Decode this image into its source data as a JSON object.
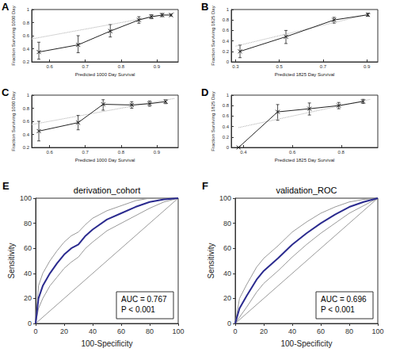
{
  "chart_data": [
    {
      "type": "calibration",
      "panel": "A",
      "x_label": "Predicted 1000 Day Survival",
      "y_label": "Fraction Surviving 1000 Day",
      "xlim": [
        0.55,
        0.96
      ],
      "xticks": [
        0.6,
        0.7,
        0.8,
        0.9
      ],
      "ylim": [
        0.2,
        1
      ],
      "yticks": [
        0.2,
        0.4,
        0.6,
        0.8,
        1
      ],
      "x": [
        0.57,
        0.68,
        0.77,
        0.85,
        0.885,
        0.915,
        0.94
      ],
      "values": [
        0.35,
        0.46,
        0.67,
        0.84,
        0.89,
        0.915,
        0.915
      ],
      "error_low": [
        0.24,
        0.34,
        0.58,
        0.79,
        0.86,
        0.89,
        0.9
      ],
      "error_high": [
        0.5,
        0.6,
        0.77,
        0.89,
        0.92,
        0.94,
        0.93
      ],
      "color": "#222222",
      "marker": "cross",
      "reference_line": {
        "x": [
          0.55,
          0.95
        ],
        "values": [
          0.55,
          0.95
        ],
        "color": "#aaaaaa",
        "line_style": "dotted"
      }
    },
    {
      "type": "calibration",
      "panel": "B",
      "x_label": "Predicted 1825 Day Survival",
      "y_label": "Fraction Surviving 1825 Day",
      "xlim": [
        0.28,
        0.95
      ],
      "xticks": [
        0.3,
        0.5,
        0.7,
        0.9
      ],
      "ylim": [
        0,
        1
      ],
      "yticks": [
        0,
        0.2,
        0.4,
        0.6,
        0.8,
        1
      ],
      "x": [
        0.32,
        0.53,
        0.75,
        0.905
      ],
      "values": [
        0.2,
        0.48,
        0.8,
        0.9
      ],
      "error_low": [
        0.08,
        0.35,
        0.74,
        0.87
      ],
      "error_high": [
        0.32,
        0.6,
        0.85,
        0.93
      ],
      "color": "#222222",
      "marker": "cross",
      "reference_line": {
        "x": [
          0.3,
          0.92
        ],
        "values": [
          0.3,
          0.92
        ],
        "color": "#aaaaaa",
        "line_style": "dotted"
      }
    },
    {
      "type": "calibration",
      "panel": "C",
      "x_label": "Predicted 1000 Day Survival",
      "y_label": "Fraction Surviving 1000 Day",
      "xlim": [
        0.55,
        0.96
      ],
      "xticks": [
        0.6,
        0.7,
        0.8,
        0.9
      ],
      "ylim": [
        0.2,
        1
      ],
      "yticks": [
        0.2,
        0.4,
        0.6,
        0.8,
        1
      ],
      "x": [
        0.57,
        0.68,
        0.75,
        0.83,
        0.88,
        0.925
      ],
      "values": [
        0.45,
        0.58,
        0.86,
        0.85,
        0.87,
        0.9
      ],
      "error_low": [
        0.3,
        0.47,
        0.77,
        0.8,
        0.83,
        0.87
      ],
      "error_high": [
        0.6,
        0.69,
        0.93,
        0.9,
        0.91,
        0.93
      ],
      "color": "#222222",
      "marker": "cross",
      "reference_line": {
        "x": [
          0.55,
          0.95
        ],
        "values": [
          0.55,
          0.95
        ],
        "color": "#aaaaaa",
        "line_style": "dotted"
      }
    },
    {
      "type": "calibration",
      "panel": "D",
      "x_label": "Predicted 1825 Day Survival",
      "y_label": "Fraction Surviving 1825 Day",
      "xlim": [
        0.35,
        0.95
      ],
      "xticks": [
        0.4,
        0.6,
        0.8
      ],
      "ylim": [
        0,
        1
      ],
      "yticks": [
        0,
        0.2,
        0.4,
        0.6,
        0.8,
        1
      ],
      "x": [
        0.38,
        0.54,
        0.67,
        0.79,
        0.89
      ],
      "values": [
        0,
        0.68,
        0.74,
        0.8,
        0.88
      ],
      "error_low": [
        0,
        0.52,
        0.62,
        0.74,
        0.84
      ],
      "error_high": [
        0,
        0.82,
        0.85,
        0.86,
        0.92
      ],
      "color": "#222222",
      "marker": "cross",
      "reference_line": {
        "x": [
          0.38,
          0.92
        ],
        "values": [
          0.38,
          0.92
        ],
        "color": "#aaaaaa",
        "line_style": "dotted"
      }
    },
    {
      "type": "roc",
      "panel": "E",
      "title": "derivation_cohort",
      "x_label": "100-Specificity",
      "y_label": "Sensitivity",
      "xlim": [
        0,
        100
      ],
      "xticks": [
        0,
        20,
        40,
        60,
        80,
        100
      ],
      "ylim": [
        0,
        100
      ],
      "yticks": [
        0,
        20,
        40,
        60,
        80,
        100
      ],
      "annotations": [
        "AUC = 0.767",
        "P < 0.001"
      ],
      "series": [
        {
          "x": [
            0,
            100
          ],
          "values": [
            0,
            100
          ],
          "color": "#999999"
        },
        {
          "x": [
            0,
            2,
            5,
            10,
            15,
            20,
            25,
            30,
            35,
            40,
            50,
            60,
            70,
            80,
            90,
            100
          ],
          "values": [
            0,
            12,
            20,
            30,
            37,
            44,
            49,
            53,
            60,
            65,
            74,
            80,
            86,
            92,
            97,
            100
          ],
          "color": "#999999"
        },
        {
          "x": [
            0,
            2,
            5,
            10,
            15,
            20,
            25,
            30,
            35,
            40,
            50,
            60,
            70,
            80,
            90,
            100
          ],
          "values": [
            0,
            30,
            40,
            50,
            58,
            65,
            70,
            73,
            79,
            84,
            90,
            94,
            98,
            100,
            100,
            100
          ],
          "color": "#999999"
        },
        {
          "x": [
            0,
            2,
            5,
            10,
            15,
            20,
            25,
            30,
            35,
            40,
            50,
            60,
            70,
            80,
            90,
            100
          ],
          "values": [
            0,
            20,
            30,
            40,
            48,
            55,
            60,
            63,
            70,
            75,
            83,
            88,
            93,
            97,
            99,
            100
          ],
          "color": "#2b2b8f"
        }
      ]
    },
    {
      "type": "roc",
      "panel": "F",
      "title": "validation_ROC",
      "x_label": "100-Specificity",
      "y_label": "Sensitivity",
      "xlim": [
        0,
        100
      ],
      "xticks": [
        0,
        20,
        40,
        60,
        80,
        100
      ],
      "ylim": [
        0,
        100
      ],
      "yticks": [
        0,
        20,
        40,
        60,
        80,
        100
      ],
      "annotations": [
        "AUC = 0.696",
        "P < 0.001"
      ],
      "series": [
        {
          "x": [
            0,
            100
          ],
          "values": [
            0,
            100
          ],
          "color": "#999999"
        },
        {
          "x": [
            0,
            3,
            8,
            15,
            20,
            30,
            40,
            50,
            60,
            70,
            80,
            90,
            100
          ],
          "values": [
            0,
            5,
            13,
            25,
            32,
            42,
            53,
            63,
            72,
            80,
            88,
            94,
            100
          ],
          "color": "#999999"
        },
        {
          "x": [
            0,
            3,
            8,
            15,
            20,
            30,
            40,
            50,
            60,
            70,
            80,
            90,
            100
          ],
          "values": [
            0,
            20,
            31,
            45,
            52,
            62,
            73,
            81,
            88,
            93,
            97,
            99,
            100
          ],
          "color": "#999999"
        },
        {
          "x": [
            0,
            3,
            8,
            15,
            20,
            30,
            40,
            50,
            60,
            70,
            80,
            90,
            100
          ],
          "values": [
            0,
            12,
            22,
            35,
            42,
            52,
            63,
            72,
            80,
            87,
            93,
            97,
            100
          ],
          "color": "#2b2b8f"
        }
      ]
    }
  ]
}
